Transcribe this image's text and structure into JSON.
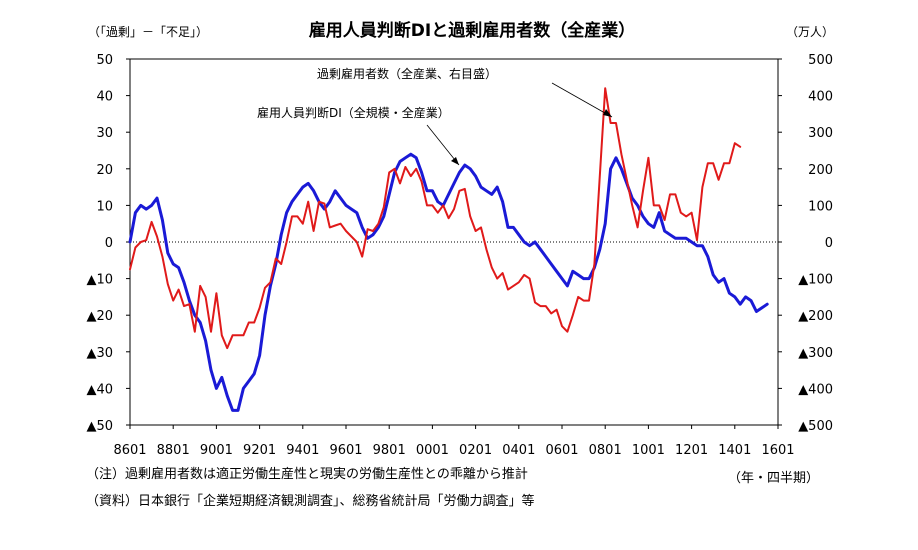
{
  "chart_data": {
    "type": "line",
    "title": "雇用人員判断DIと過剰雇用者数（全産業）",
    "left_unit": "（「過剰」－「不足」）",
    "right_unit": "（万人）",
    "x_tick_labels": [
      "8601",
      "8801",
      "9001",
      "9201",
      "9401",
      "9601",
      "9801",
      "0001",
      "0201",
      "0401",
      "0601",
      "0801",
      "1001",
      "1201",
      "1401",
      "1601"
    ],
    "left_axis": {
      "ylim": [
        -50,
        50
      ],
      "ticks": [
        50,
        40,
        30,
        20,
        10,
        0,
        -10,
        -20,
        -30,
        -40,
        -50
      ],
      "tick_labels": [
        "50",
        "40",
        "30",
        "20",
        "10",
        "0",
        "▲10",
        "▲20",
        "▲30",
        "▲40",
        "▲50"
      ]
    },
    "right_axis": {
      "ylim": [
        -500,
        500
      ],
      "ticks": [
        500,
        400,
        300,
        200,
        100,
        0,
        -100,
        -200,
        -300,
        -400,
        -500
      ],
      "tick_labels": [
        "500",
        "400",
        "300",
        "200",
        "100",
        "0",
        "▲100",
        "▲200",
        "▲300",
        "▲400",
        "▲500"
      ]
    },
    "zero_line": "dotted",
    "grid": false,
    "annotations": [
      {
        "text": "過剰雇用者数（全産業、右目盛）",
        "target": "excess"
      },
      {
        "text": "雇用人員判断DI（全規模・全産業）",
        "target": "di"
      }
    ],
    "series": [
      {
        "key": "di",
        "axis": "left",
        "color": "#1a1ad6",
        "points": [
          [
            0,
            0
          ],
          [
            1,
            8
          ],
          [
            2,
            10
          ],
          [
            3,
            9
          ],
          [
            4,
            10
          ],
          [
            5,
            12
          ],
          [
            6,
            6
          ],
          [
            7,
            -3
          ],
          [
            8,
            -6
          ],
          [
            9,
            -7
          ],
          [
            10,
            -11
          ],
          [
            11,
            -16
          ],
          [
            12,
            -20
          ],
          [
            13,
            -22
          ],
          [
            14,
            -27
          ],
          [
            15,
            -35
          ],
          [
            16,
            -40
          ],
          [
            17,
            -37
          ],
          [
            18,
            -42
          ],
          [
            19,
            -46
          ],
          [
            20,
            -46
          ],
          [
            21,
            -40
          ],
          [
            22,
            -38
          ],
          [
            23,
            -36
          ],
          [
            24,
            -31
          ],
          [
            25,
            -20
          ],
          [
            26,
            -12
          ],
          [
            27,
            -6
          ],
          [
            28,
            2
          ],
          [
            29,
            8
          ],
          [
            30,
            11
          ],
          [
            31,
            13
          ],
          [
            32,
            15
          ],
          [
            33,
            16
          ],
          [
            34,
            14
          ],
          [
            35,
            11
          ],
          [
            36,
            9
          ],
          [
            37,
            11
          ],
          [
            38,
            14
          ],
          [
            39,
            12
          ],
          [
            40,
            10
          ],
          [
            41,
            9
          ],
          [
            42,
            8
          ],
          [
            43,
            4
          ],
          [
            44,
            1
          ],
          [
            45,
            2
          ],
          [
            46,
            4
          ],
          [
            47,
            7
          ],
          [
            48,
            13
          ],
          [
            49,
            19
          ],
          [
            50,
            22
          ],
          [
            51,
            23
          ],
          [
            52,
            24
          ],
          [
            53,
            23
          ],
          [
            54,
            19
          ],
          [
            55,
            14
          ],
          [
            56,
            14
          ],
          [
            57,
            11
          ],
          [
            58,
            10
          ],
          [
            59,
            13
          ],
          [
            60,
            16
          ],
          [
            61,
            19
          ],
          [
            62,
            21
          ],
          [
            63,
            20
          ],
          [
            64,
            18
          ],
          [
            65,
            15
          ],
          [
            66,
            14
          ],
          [
            67,
            13
          ],
          [
            68,
            15
          ],
          [
            69,
            11
          ],
          [
            70,
            4
          ],
          [
            71,
            4
          ],
          [
            72,
            2
          ],
          [
            73,
            0
          ],
          [
            74,
            -1
          ],
          [
            75,
            0
          ],
          [
            76,
            -2
          ],
          [
            77,
            -4
          ],
          [
            78,
            -6
          ],
          [
            79,
            -8
          ],
          [
            80,
            -10
          ],
          [
            81,
            -12
          ],
          [
            82,
            -8
          ],
          [
            83,
            -9
          ],
          [
            84,
            -10
          ],
          [
            85,
            -10
          ],
          [
            86,
            -7
          ],
          [
            87,
            -2
          ],
          [
            88,
            5
          ],
          [
            89,
            20
          ],
          [
            90,
            23
          ],
          [
            91,
            20
          ],
          [
            92,
            16
          ],
          [
            93,
            12
          ],
          [
            94,
            10
          ],
          [
            95,
            7
          ],
          [
            96,
            5
          ],
          [
            97,
            4
          ],
          [
            98,
            8
          ],
          [
            99,
            3
          ],
          [
            100,
            2
          ],
          [
            101,
            1
          ],
          [
            102,
            1
          ],
          [
            103,
            1
          ],
          [
            104,
            0
          ],
          [
            105,
            -1
          ],
          [
            106,
            -1
          ],
          [
            107,
            -4
          ],
          [
            108,
            -9
          ],
          [
            109,
            -11
          ],
          [
            110,
            -10
          ],
          [
            111,
            -14
          ],
          [
            112,
            -15
          ],
          [
            113,
            -17
          ],
          [
            114,
            -15
          ],
          [
            115,
            -16
          ],
          [
            116,
            -19
          ],
          [
            117,
            -18
          ],
          [
            118,
            -17
          ]
        ]
      },
      {
        "key": "excess",
        "axis": "right",
        "color": "#e01a1a",
        "points": [
          [
            0,
            -75
          ],
          [
            1,
            -15
          ],
          [
            2,
            0
          ],
          [
            3,
            5
          ],
          [
            4,
            55
          ],
          [
            5,
            15
          ],
          [
            6,
            -40
          ],
          [
            7,
            -115
          ],
          [
            8,
            -160
          ],
          [
            9,
            -130
          ],
          [
            10,
            -175
          ],
          [
            11,
            -170
          ],
          [
            12,
            -245
          ],
          [
            13,
            -120
          ],
          [
            14,
            -150
          ],
          [
            15,
            -245
          ],
          [
            16,
            -140
          ],
          [
            17,
            -255
          ],
          [
            18,
            -290
          ],
          [
            19,
            -255
          ],
          [
            20,
            -255
          ],
          [
            21,
            -255
          ],
          [
            22,
            -220
          ],
          [
            23,
            -220
          ],
          [
            24,
            -180
          ],
          [
            25,
            -125
          ],
          [
            26,
            -110
          ],
          [
            27,
            -45
          ],
          [
            28,
            -60
          ],
          [
            29,
            0
          ],
          [
            30,
            70
          ],
          [
            31,
            70
          ],
          [
            32,
            50
          ],
          [
            33,
            110
          ],
          [
            34,
            30
          ],
          [
            35,
            110
          ],
          [
            36,
            105
          ],
          [
            37,
            40
          ],
          [
            38,
            45
          ],
          [
            39,
            50
          ],
          [
            40,
            30
          ],
          [
            41,
            15
          ],
          [
            42,
            0
          ],
          [
            43,
            -40
          ],
          [
            44,
            35
          ],
          [
            45,
            30
          ],
          [
            46,
            50
          ],
          [
            47,
            95
          ],
          [
            48,
            190
          ],
          [
            49,
            200
          ],
          [
            50,
            160
          ],
          [
            51,
            205
          ],
          [
            52,
            180
          ],
          [
            53,
            200
          ],
          [
            54,
            165
          ],
          [
            55,
            100
          ],
          [
            56,
            100
          ],
          [
            57,
            80
          ],
          [
            58,
            100
          ],
          [
            59,
            65
          ],
          [
            60,
            90
          ],
          [
            61,
            140
          ],
          [
            62,
            145
          ],
          [
            63,
            70
          ],
          [
            64,
            30
          ],
          [
            65,
            40
          ],
          [
            66,
            -20
          ],
          [
            67,
            -70
          ],
          [
            68,
            -100
          ],
          [
            69,
            -85
          ],
          [
            70,
            -130
          ],
          [
            71,
            -120
          ],
          [
            72,
            -110
          ],
          [
            73,
            -90
          ],
          [
            74,
            -100
          ],
          [
            75,
            -165
          ],
          [
            76,
            -175
          ],
          [
            77,
            -175
          ],
          [
            78,
            -195
          ],
          [
            79,
            -185
          ],
          [
            80,
            -230
          ],
          [
            81,
            -245
          ],
          [
            82,
            -200
          ],
          [
            83,
            -150
          ],
          [
            84,
            -160
          ],
          [
            85,
            -160
          ],
          [
            86,
            -60
          ],
          [
            87,
            180
          ],
          [
            88,
            420
          ],
          [
            89,
            325
          ],
          [
            90,
            325
          ],
          [
            91,
            240
          ],
          [
            92,
            170
          ],
          [
            93,
            100
          ],
          [
            94,
            40
          ],
          [
            95,
            140
          ],
          [
            96,
            230
          ],
          [
            97,
            100
          ],
          [
            98,
            100
          ],
          [
            99,
            60
          ],
          [
            100,
            130
          ],
          [
            101,
            130
          ],
          [
            102,
            80
          ],
          [
            103,
            70
          ],
          [
            104,
            80
          ],
          [
            105,
            5
          ],
          [
            106,
            150
          ],
          [
            107,
            215
          ],
          [
            108,
            215
          ],
          [
            109,
            170
          ],
          [
            110,
            215
          ],
          [
            111,
            215
          ],
          [
            112,
            270
          ],
          [
            113,
            260
          ]
        ]
      }
    ],
    "notes": [
      "（注）過剰雇用者数は適正労働生産性と現実の労働生産性との乖離から推計",
      "（資料）日本銀行「企業短期経済観測調査」、総務省統計局「労働力調査」等"
    ],
    "x_unit": "（年・四半期）"
  }
}
